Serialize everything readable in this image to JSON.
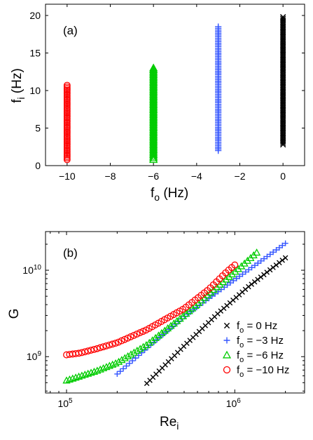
{
  "chart_data": [
    {
      "type": "scatter",
      "panel_label": "(a)",
      "xlabel": "f",
      "xlabel_sub": "o",
      "xlabel_unit": " (Hz)",
      "ylabel": "f",
      "ylabel_sub": "i",
      "ylabel_unit": " (Hz)",
      "xlim": [
        -11,
        1
      ],
      "ylim": [
        0,
        21.5
      ],
      "xticks": [
        -10,
        -8,
        -6,
        -4,
        -2,
        0
      ],
      "xtick_labels": [
        "−10",
        "−8",
        "−6",
        "−4",
        "−2",
        "0"
      ],
      "yticks": [
        0,
        5,
        10,
        15,
        20
      ],
      "ytick_labels": [
        "0",
        "5",
        "10",
        "15",
        "20"
      ],
      "grid": false,
      "series": [
        {
          "f_o": -10,
          "fi_min": 0.8,
          "fi_max": 10.7,
          "marker": "circle",
          "color": "#ff0000"
        },
        {
          "f_o": -6,
          "fi_min": 0.8,
          "fi_max": 13.0,
          "marker": "triangle",
          "color": "#00cc00"
        },
        {
          "f_o": -3,
          "fi_min": 2.0,
          "fi_max": 18.5,
          "marker": "plus",
          "color": "#3355ff"
        },
        {
          "f_o": 0,
          "fi_min": 2.8,
          "fi_max": 19.8,
          "marker": "cross",
          "color": "#000000"
        }
      ]
    },
    {
      "type": "scatter",
      "panel_label": "(b)",
      "xscale": "log",
      "yscale": "log",
      "xlabel": "Re",
      "xlabel_sub": "i",
      "ylabel": "G",
      "xlim": [
        75000,
        2600000
      ],
      "ylim": [
        380000000,
        28000000000
      ],
      "xticks": [
        100000,
        1000000
      ],
      "xtick_labels": [
        {
          "base": "10",
          "exp": "5"
        },
        {
          "base": "10",
          "exp": "6"
        }
      ],
      "yticks": [
        1000000000,
        10000000000
      ],
      "ytick_labels": [
        {
          "base": "10",
          "exp": "9"
        },
        {
          "base": "10",
          "exp": "10"
        }
      ],
      "grid": false,
      "legend_position": "bottom-right",
      "series": [
        {
          "name_main": "f",
          "name_sub": "o",
          "name_rest": " = 0 Hz",
          "marker": "cross",
          "color": "#000000",
          "x": [
            300000,
            500000,
            800000,
            1200000,
            2000000
          ],
          "y": [
            490000000,
            1330000000,
            3200000000,
            6400000000,
            13900000000
          ]
        },
        {
          "name_main": "f",
          "name_sub": "o",
          "name_rest": " = −3 Hz",
          "marker": "plus",
          "color": "#3355ff",
          "x": [
            200000,
            300000,
            500000,
            800000,
            1200000,
            2000000
          ],
          "y": [
            630000000,
            1250000000,
            2900000000,
            5700000000,
            10000000000,
            20500000000
          ]
        },
        {
          "name_main": "f",
          "name_sub": "o",
          "name_rest": " = −6 Hz",
          "marker": "triangle",
          "color": "#00cc00",
          "x": [
            100000,
            150000,
            200000,
            300000,
            500000,
            800000,
            1000000,
            1350000
          ],
          "y": [
            530000000,
            680000000,
            850000000,
            1370000000,
            3000000000,
            6600000000,
            9500000000,
            16000000000
          ]
        },
        {
          "name_main": "f",
          "name_sub": "o",
          "name_rest": " = −10 Hz",
          "marker": "circle",
          "color": "#ff0000",
          "x": [
            100000,
            120000,
            150000,
            200000,
            300000,
            500000,
            700000,
            900000,
            1000000
          ],
          "y": [
            1050000000,
            1100000000,
            1230000000,
            1450000000,
            2050000000,
            3600000000,
            6000000000,
            9700000000,
            11500000000
          ]
        }
      ]
    }
  ]
}
